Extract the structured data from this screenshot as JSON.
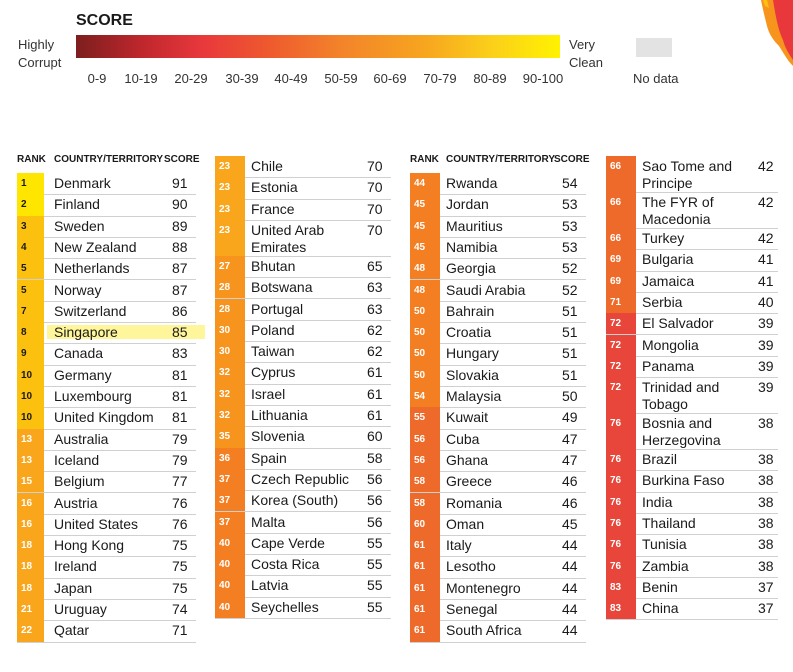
{
  "legend": {
    "title": "SCORE",
    "left_label": "Highly Corrupt",
    "right_label": "Very Clean",
    "no_data": "No data",
    "ticks": [
      "0-9",
      "10-19",
      "20-29",
      "30-39",
      "40-49",
      "50-59",
      "60-69",
      "70-79",
      "80-89",
      "90-100"
    ],
    "gradient_colors": [
      "#7d1e1e",
      "#c0272d",
      "#e8383c",
      "#ee5a2e",
      "#f3842a",
      "#f7a51f",
      "#fbd01a",
      "#fff200"
    ],
    "no_data_color": "#e3e3e3"
  },
  "headers": {
    "rank": "RANK",
    "country": "COUNTRY/TERRITORY",
    "score": "SCORE"
  },
  "band_colors": {
    "90": "#ffe600",
    "80": "#fcc10f",
    "70": "#f9a61d",
    "60": "#f7941d",
    "50": "#f37f22",
    "40": "#ee6a2b",
    "30": "#e8463a"
  },
  "columns": [
    [
      {
        "rank": "1",
        "country": "Denmark",
        "score": "91"
      },
      {
        "rank": "2",
        "country": "Finland",
        "score": "90"
      },
      {
        "rank": "3",
        "country": "Sweden",
        "score": "89"
      },
      {
        "rank": "4",
        "country": "New Zealand",
        "score": "88"
      },
      {
        "rank": "5",
        "country": "Netherlands",
        "score": "87"
      },
      {
        "rank": "5",
        "country": "Norway",
        "score": "87"
      },
      {
        "rank": "7",
        "country": "Switzerland",
        "score": "86"
      },
      {
        "rank": "8",
        "country": "Singapore",
        "score": "85",
        "highlight": true
      },
      {
        "rank": "9",
        "country": "Canada",
        "score": "83"
      },
      {
        "rank": "10",
        "country": "Germany",
        "score": "81"
      },
      {
        "rank": "10",
        "country": "Luxembourg",
        "score": "81"
      },
      {
        "rank": "10",
        "country": "United Kingdom",
        "score": "81"
      },
      {
        "rank": "13",
        "country": "Australia",
        "score": "79"
      },
      {
        "rank": "13",
        "country": "Iceland",
        "score": "79"
      },
      {
        "rank": "15",
        "country": "Belgium",
        "score": "77"
      },
      {
        "rank": "16",
        "country": "Austria",
        "score": "76"
      },
      {
        "rank": "16",
        "country": "United States",
        "score": "76"
      },
      {
        "rank": "18",
        "country": "Hong Kong",
        "score": "75"
      },
      {
        "rank": "18",
        "country": "Ireland",
        "score": "75"
      },
      {
        "rank": "18",
        "country": "Japan",
        "score": "75"
      },
      {
        "rank": "21",
        "country": "Uruguay",
        "score": "74"
      },
      {
        "rank": "22",
        "country": "Qatar",
        "score": "71"
      }
    ],
    [
      {
        "rank": "23",
        "country": "Chile",
        "score": "70"
      },
      {
        "rank": "23",
        "country": "Estonia",
        "score": "70"
      },
      {
        "rank": "23",
        "country": "France",
        "score": "70"
      },
      {
        "rank": "23",
        "country": "United Arab Emirates",
        "score": "70",
        "lines": 2
      },
      {
        "rank": "27",
        "country": "Bhutan",
        "score": "65"
      },
      {
        "rank": "28",
        "country": "Botswana",
        "score": "63"
      },
      {
        "rank": "28",
        "country": "Portugal",
        "score": "63"
      },
      {
        "rank": "30",
        "country": "Poland",
        "score": "62"
      },
      {
        "rank": "30",
        "country": "Taiwan",
        "score": "62"
      },
      {
        "rank": "32",
        "country": "Cyprus",
        "score": "61"
      },
      {
        "rank": "32",
        "country": "Israel",
        "score": "61"
      },
      {
        "rank": "32",
        "country": "Lithuania",
        "score": "61"
      },
      {
        "rank": "35",
        "country": "Slovenia",
        "score": "60"
      },
      {
        "rank": "36",
        "country": "Spain",
        "score": "58"
      },
      {
        "rank": "37",
        "country": "Czech Republic",
        "score": "56"
      },
      {
        "rank": "37",
        "country": "Korea (South)",
        "score": "56"
      },
      {
        "rank": "37",
        "country": "Malta",
        "score": "56"
      },
      {
        "rank": "40",
        "country": "Cape Verde",
        "score": "55"
      },
      {
        "rank": "40",
        "country": "Costa Rica",
        "score": "55"
      },
      {
        "rank": "40",
        "country": "Latvia",
        "score": "55"
      },
      {
        "rank": "40",
        "country": "Seychelles",
        "score": "55"
      }
    ],
    [
      {
        "rank": "44",
        "country": "Rwanda",
        "score": "54"
      },
      {
        "rank": "45",
        "country": "Jordan",
        "score": "53"
      },
      {
        "rank": "45",
        "country": "Mauritius",
        "score": "53"
      },
      {
        "rank": "45",
        "country": "Namibia",
        "score": "53"
      },
      {
        "rank": "48",
        "country": "Georgia",
        "score": "52"
      },
      {
        "rank": "48",
        "country": "Saudi Arabia",
        "score": "52"
      },
      {
        "rank": "50",
        "country": "Bahrain",
        "score": "51"
      },
      {
        "rank": "50",
        "country": "Croatia",
        "score": "51"
      },
      {
        "rank": "50",
        "country": "Hungary",
        "score": "51"
      },
      {
        "rank": "50",
        "country": "Slovakia",
        "score": "51"
      },
      {
        "rank": "54",
        "country": "Malaysia",
        "score": "50"
      },
      {
        "rank": "55",
        "country": "Kuwait",
        "score": "49"
      },
      {
        "rank": "56",
        "country": "Cuba",
        "score": "47"
      },
      {
        "rank": "56",
        "country": "Ghana",
        "score": "47"
      },
      {
        "rank": "58",
        "country": "Greece",
        "score": "46"
      },
      {
        "rank": "58",
        "country": "Romania",
        "score": "46"
      },
      {
        "rank": "60",
        "country": "Oman",
        "score": "45"
      },
      {
        "rank": "61",
        "country": "Italy",
        "score": "44"
      },
      {
        "rank": "61",
        "country": "Lesotho",
        "score": "44"
      },
      {
        "rank": "61",
        "country": "Montenegro",
        "score": "44"
      },
      {
        "rank": "61",
        "country": "Senegal",
        "score": "44"
      },
      {
        "rank": "61",
        "country": "South Africa",
        "score": "44"
      }
    ],
    [
      {
        "rank": "66",
        "country": "Sao Tome and Principe",
        "score": "42",
        "lines": 2
      },
      {
        "rank": "66",
        "country": "The FYR of Macedonia",
        "score": "42",
        "lines": 2
      },
      {
        "rank": "66",
        "country": "Turkey",
        "score": "42"
      },
      {
        "rank": "69",
        "country": "Bulgaria",
        "score": "41"
      },
      {
        "rank": "69",
        "country": "Jamaica",
        "score": "41"
      },
      {
        "rank": "71",
        "country": "Serbia",
        "score": "40"
      },
      {
        "rank": "72",
        "country": "El Salvador",
        "score": "39"
      },
      {
        "rank": "72",
        "country": "Mongolia",
        "score": "39"
      },
      {
        "rank": "72",
        "country": "Panama",
        "score": "39"
      },
      {
        "rank": "72",
        "country": "Trinidad and Tobago",
        "score": "39",
        "lines": 2
      },
      {
        "rank": "76",
        "country": "Bosnia and Herzegovina",
        "score": "38",
        "lines": 2
      },
      {
        "rank": "76",
        "country": "Brazil",
        "score": "38"
      },
      {
        "rank": "76",
        "country": "Burkina Faso",
        "score": "38"
      },
      {
        "rank": "76",
        "country": "India",
        "score": "38"
      },
      {
        "rank": "76",
        "country": "Thailand",
        "score": "38"
      },
      {
        "rank": "76",
        "country": "Tunisia",
        "score": "38"
      },
      {
        "rank": "76",
        "country": "Zambia",
        "score": "38"
      },
      {
        "rank": "83",
        "country": "Benin",
        "score": "37"
      },
      {
        "rank": "83",
        "country": "China",
        "score": "37"
      }
    ]
  ]
}
